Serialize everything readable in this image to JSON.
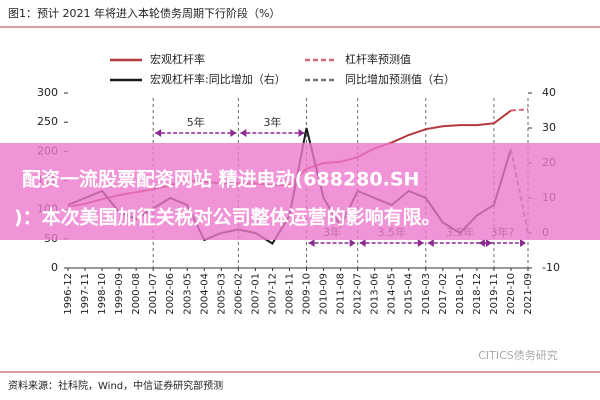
{
  "chart_data": {
    "type": "line",
    "title": "图1：预计 2021 年将进入本轮债务周期下行阶段（%）",
    "categories": [
      "1996-12",
      "1997-11",
      "1998-10",
      "1999-09",
      "2000-08",
      "2001-07",
      "2002-06",
      "2003-05",
      "2004-04",
      "2005-03",
      "2006-02",
      "2007-01",
      "2007-12",
      "2008-11",
      "2009-10",
      "2010-09",
      "2011-08",
      "2012-07",
      "2013-06",
      "2014-05",
      "2015-04",
      "2016-03",
      "2017-02",
      "2018-01",
      "2018-12",
      "2019-11",
      "2020-10",
      "2021-09"
    ],
    "series": [
      {
        "name": "宏观杠杆率",
        "color": "#b5383c",
        "dash": false,
        "values": [
          105,
          110,
          118,
          125,
          130,
          135,
          142,
          150,
          148,
          145,
          145,
          145,
          142,
          142,
          170,
          180,
          182,
          190,
          205,
          215,
          228,
          238,
          243,
          245,
          245,
          248,
          270,
          null
        ]
      },
      {
        "name": "杠杆率预测值",
        "color": "#d4667a",
        "dash": true,
        "values": [
          null,
          null,
          null,
          null,
          null,
          null,
          null,
          null,
          null,
          null,
          null,
          null,
          null,
          null,
          null,
          null,
          null,
          null,
          null,
          null,
          null,
          null,
          null,
          null,
          null,
          null,
          270,
          272
        ]
      },
      {
        "name": "宏观杠杆率:同比增加（右）",
        "color": "#1a1a1a",
        "dash": false,
        "axis": "y2",
        "values": [
          8,
          10,
          12,
          6,
          4,
          7,
          10,
          8,
          -2,
          0,
          1,
          0,
          -3,
          5,
          30,
          10,
          2,
          12,
          10,
          8,
          12,
          10,
          3,
          0,
          5,
          8,
          24,
          null
        ]
      },
      {
        "name": "同比增加预测值（右）",
        "color": "#777777",
        "dash": true,
        "axis": "y2",
        "values": [
          null,
          null,
          null,
          null,
          null,
          null,
          null,
          null,
          null,
          null,
          null,
          null,
          null,
          null,
          null,
          null,
          null,
          null,
          null,
          null,
          null,
          null,
          null,
          null,
          null,
          null,
          24,
          0
        ]
      }
    ],
    "ylim": [
      0,
      300
    ],
    "yticks": [
      0,
      50,
      100,
      150,
      200,
      250,
      300
    ],
    "y2lim": [
      -10,
      40
    ],
    "y2ticks": [
      -10,
      0,
      10,
      20,
      30,
      40
    ],
    "annotations": [
      "5年",
      "3年",
      "3年",
      "3.5年",
      "3.5年",
      "3年?"
    ],
    "source": "资料来源：社科院，Wind，中信证券研究部预测",
    "watermark": "CITICS债务研究"
  },
  "overlay": [
    "配资一流股票配资网站 精进电动(688280.SH",
    ")：本次美国加征关税对公司整体运营的影响有限。"
  ]
}
